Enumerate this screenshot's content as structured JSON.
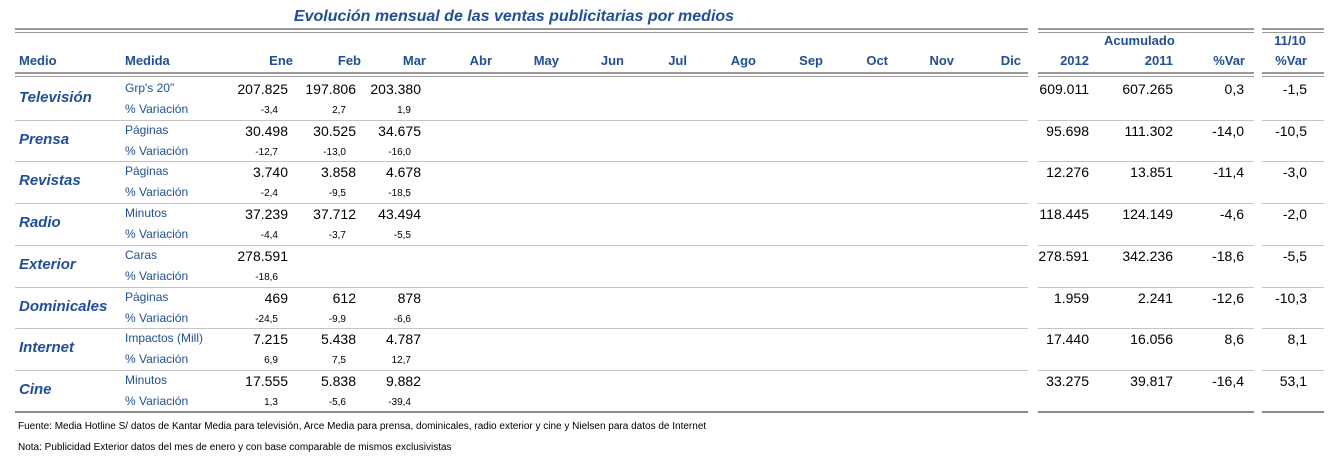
{
  "title": "Evolución mensual de las ventas publicitarias por medios",
  "headers": {
    "medio": "Medio",
    "medida": "Medida",
    "months": [
      "Ene",
      "Feb",
      "Mar",
      "Abr",
      "May",
      "Jun",
      "Jul",
      "Ago",
      "Sep",
      "Oct",
      "Nov",
      "Dic"
    ],
    "acumulado": "Acumulado",
    "y2012": "2012",
    "y2011": "2011",
    "pvar": "%Var",
    "ratio_top": "11/10",
    "ratio_bottom": "%Var"
  },
  "rows": [
    {
      "medio": "Televisión",
      "medida": "Grp's 20\"",
      "var_label": "% Variación",
      "values": [
        "207.825",
        "197.806",
        "203.380"
      ],
      "variations": [
        "-3,4",
        "2,7",
        "1,9"
      ],
      "acc2012": "609.011",
      "acc2011": "607.265",
      "accvar": "0,3",
      "ratio": "-1,5"
    },
    {
      "medio": "Prensa",
      "medida": "Páginas",
      "var_label": "% Variación",
      "values": [
        "30.498",
        "30.525",
        "34.675"
      ],
      "variations": [
        "-12,7",
        "-13,0",
        "-16,0"
      ],
      "acc2012": "95.698",
      "acc2011": "111.302",
      "accvar": "-14,0",
      "ratio": "-10,5"
    },
    {
      "medio": "Revistas",
      "medida": "Páginas",
      "var_label": "% Variación",
      "values": [
        "3.740",
        "3.858",
        "4.678"
      ],
      "variations": [
        "-2,4",
        "-9,5",
        "-18,5"
      ],
      "acc2012": "12.276",
      "acc2011": "13.851",
      "accvar": "-11,4",
      "ratio": "-3,0"
    },
    {
      "medio": "Radio",
      "medida": "Minutos",
      "var_label": "% Variación",
      "values": [
        "37.239",
        "37.712",
        "43.494"
      ],
      "variations": [
        "-4,4",
        "-3,7",
        "-5,5"
      ],
      "acc2012": "118.445",
      "acc2011": "124.149",
      "accvar": "-4,6",
      "ratio": "-2,0"
    },
    {
      "medio": "Exterior",
      "medida": "Caras",
      "var_label": "% Variación",
      "values": [
        "278.591"
      ],
      "variations": [
        "-18,6"
      ],
      "acc2012": "278.591",
      "acc2011": "342.236",
      "accvar": "-18,6",
      "ratio": "-5,5"
    },
    {
      "medio": "Dominicales",
      "medida": "Páginas",
      "var_label": "% Variación",
      "values": [
        "469",
        "612",
        "878"
      ],
      "variations": [
        "-24,5",
        "-9,9",
        "-6,6"
      ],
      "acc2012": "1.959",
      "acc2011": "2.241",
      "accvar": "-12,6",
      "ratio": "-10,3"
    },
    {
      "medio": "Internet",
      "medida": "Impactos (Mill)",
      "var_label": "% Variación",
      "values": [
        "7.215",
        "5.438",
        "4.787"
      ],
      "variations": [
        "6,9",
        "7,5",
        "12,7"
      ],
      "acc2012": "17.440",
      "acc2011": "16.056",
      "accvar": "8,6",
      "ratio": "8,1"
    },
    {
      "medio": "Cine",
      "medida": "Minutos",
      "var_label": "% Variación",
      "values": [
        "17.555",
        "5.838",
        "9.882"
      ],
      "variations": [
        "1,3",
        "-5,6",
        "-39,4"
      ],
      "acc2012": "33.275",
      "acc2011": "39.817",
      "accvar": "-16,4",
      "ratio": "53,1"
    }
  ],
  "footnotes": {
    "fuente": "Fuente: Media Hotline S/ datos de Kantar Media para televisión, Arce Media para prensa, dominicales, radio exterior y cine y Nielsen para datos de Internet",
    "nota": "Nota: Publicidad Exterior datos del mes de enero y con base comparable de mismos exclusivistas"
  }
}
